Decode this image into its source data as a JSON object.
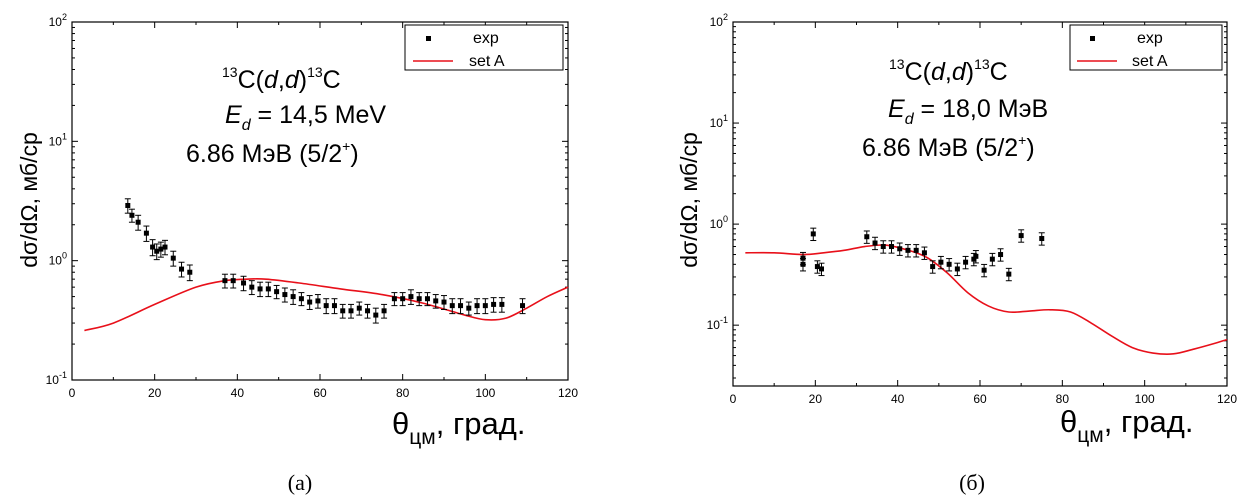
{
  "chart_data": [
    {
      "type": "scatter",
      "caption": "(а)",
      "title_lines": [
        "13C(d,d)13C",
        "Ed = 14,5 MeV",
        "6.86 МэВ (5/2+)"
      ],
      "xlabel": "θцм, град.",
      "ylabel": "dσ/dΩ, мб/ср",
      "x_ticks": [
        0,
        20,
        40,
        60,
        80,
        100,
        120
      ],
      "y_ticks": [
        0.1,
        1,
        10,
        100
      ],
      "xlim": [
        0,
        120
      ],
      "ylim": [
        0.1,
        100
      ],
      "yscale": "log",
      "legend_position": "top-right",
      "series": [
        {
          "name": "exp",
          "kind": "points",
          "color": "#000000",
          "x": [
            13.5,
            14.5,
            16,
            18,
            19.5,
            20.5,
            21.5,
            22.5,
            24.5,
            26.5,
            28.5,
            37,
            39,
            41.5,
            43.5,
            45.5,
            47.5,
            49.5,
            51.5,
            53.5,
            55.5,
            57.5,
            59.5,
            61.5,
            63.5,
            65.5,
            67.5,
            69.5,
            71.5,
            73.5,
            75.5,
            78,
            80,
            82,
            84,
            86,
            88,
            90,
            92,
            94,
            96,
            98,
            100,
            102,
            104,
            109
          ],
          "y": [
            2.9,
            2.4,
            2.1,
            1.7,
            1.3,
            1.2,
            1.25,
            1.3,
            1.05,
            0.85,
            0.8,
            0.68,
            0.68,
            0.65,
            0.6,
            0.58,
            0.58,
            0.55,
            0.52,
            0.5,
            0.48,
            0.45,
            0.46,
            0.42,
            0.42,
            0.38,
            0.38,
            0.4,
            0.38,
            0.35,
            0.38,
            0.48,
            0.48,
            0.5,
            0.48,
            0.48,
            0.46,
            0.45,
            0.42,
            0.42,
            0.4,
            0.42,
            0.42,
            0.43,
            0.43,
            0.42
          ],
          "err": [
            0.4,
            0.3,
            0.3,
            0.25,
            0.2,
            0.18,
            0.18,
            0.18,
            0.15,
            0.12,
            0.12,
            0.09,
            0.09,
            0.09,
            0.08,
            0.08,
            0.08,
            0.07,
            0.07,
            0.07,
            0.06,
            0.06,
            0.06,
            0.06,
            0.06,
            0.05,
            0.05,
            0.05,
            0.05,
            0.05,
            0.05,
            0.06,
            0.06,
            0.07,
            0.06,
            0.06,
            0.06,
            0.06,
            0.06,
            0.06,
            0.05,
            0.06,
            0.06,
            0.06,
            0.06,
            0.06
          ]
        },
        {
          "name": "set A",
          "kind": "line",
          "color": "#e8101a",
          "x": [
            3,
            10,
            20,
            30,
            37,
            42,
            47,
            55,
            65,
            75,
            85,
            95,
            100,
            105,
            110,
            115,
            120
          ],
          "y": [
            0.26,
            0.3,
            0.43,
            0.6,
            0.68,
            0.7,
            0.7,
            0.65,
            0.58,
            0.52,
            0.44,
            0.35,
            0.32,
            0.33,
            0.4,
            0.5,
            0.6
          ]
        }
      ]
    },
    {
      "type": "scatter",
      "caption": "(б)",
      "title_lines": [
        "13C(d,d)13C",
        "Ed = 18,0 МэВ",
        "6.86 МэВ (5/2+)"
      ],
      "xlabel": "θцм, град.",
      "ylabel": "dσ/dΩ, мб/ср",
      "x_ticks": [
        0,
        20,
        40,
        60,
        80,
        100,
        120
      ],
      "y_ticks": [
        0.1,
        1,
        10,
        100
      ],
      "xlim": [
        0,
        120
      ],
      "ylim": [
        0.025,
        100
      ],
      "yscale": "log",
      "legend_position": "top-right",
      "series": [
        {
          "name": "exp",
          "kind": "points",
          "color": "#000000",
          "x": [
            17,
            17,
            19.5,
            20.5,
            21.5,
            32.5,
            34.5,
            36.5,
            38.5,
            40.5,
            42.5,
            44.5,
            46.5,
            48.5,
            50.5,
            52.5,
            54.5,
            56.5,
            58.5,
            59,
            61,
            63,
            65,
            67,
            70,
            75
          ],
          "y": [
            0.46,
            0.4,
            0.8,
            0.38,
            0.36,
            0.75,
            0.65,
            0.6,
            0.6,
            0.57,
            0.55,
            0.55,
            0.52,
            0.38,
            0.42,
            0.4,
            0.36,
            0.42,
            0.45,
            0.48,
            0.35,
            0.45,
            0.5,
            0.32,
            0.77,
            0.72
          ]
        },
        {
          "name": "set A",
          "kind": "line",
          "color": "#e8101a",
          "x": [
            3,
            10,
            17,
            22,
            27,
            32,
            37,
            42,
            47,
            52,
            57,
            62,
            67,
            72,
            77,
            82,
            87,
            92,
            97,
            102,
            107,
            112,
            117,
            120
          ],
          "y": [
            0.52,
            0.52,
            0.5,
            0.52,
            0.55,
            0.6,
            0.62,
            0.56,
            0.47,
            0.33,
            0.21,
            0.155,
            0.135,
            0.138,
            0.142,
            0.135,
            0.105,
            0.078,
            0.06,
            0.053,
            0.052,
            0.058,
            0.066,
            0.072
          ]
        }
      ]
    }
  ]
}
